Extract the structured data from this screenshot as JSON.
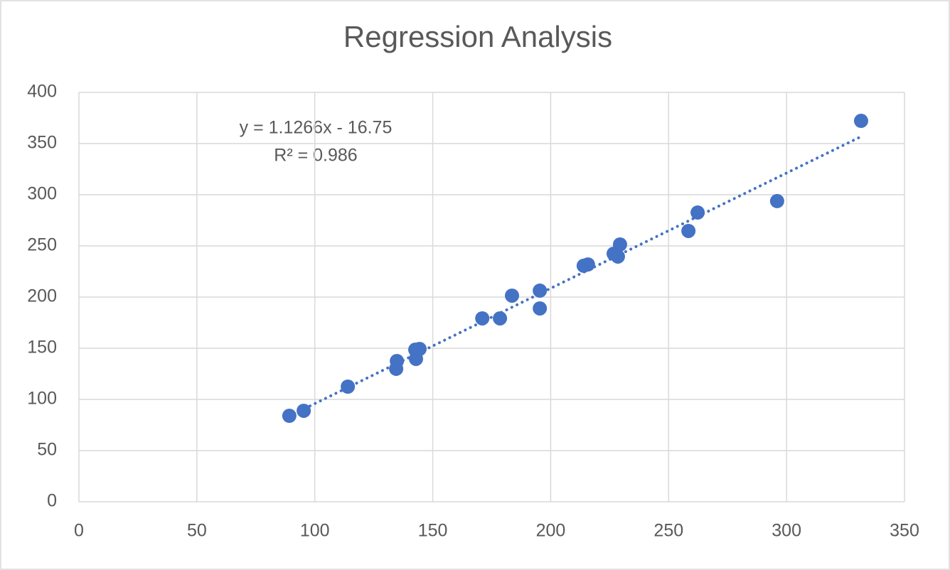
{
  "chart_data": {
    "type": "scatter",
    "title": "Regression Analysis",
    "series": [
      {
        "color": "#4472c4",
        "x": [
          89.2,
          95.3,
          114.0,
          134.5,
          134.8,
          142.9,
          142.6,
          144.4,
          171.0,
          178.5,
          183.6,
          195.4,
          195.4,
          214.0,
          215.8,
          226.7,
          228.5,
          229.4,
          258.4,
          262.3,
          296.0,
          331.6
        ],
        "values": [
          84.0,
          88.9,
          112.5,
          129.9,
          137.5,
          139.6,
          148.6,
          149.3,
          179.2,
          179.2,
          201.4,
          206.3,
          188.9,
          230.6,
          231.9,
          242.4,
          239.6,
          251.4,
          264.6,
          282.6,
          293.8,
          372.2
        ]
      }
    ],
    "trendline": {
      "slope": 1.1266,
      "intercept": -16.75,
      "label": "y = 1.1266x - 16.75",
      "r2": 0.986,
      "r2_label": "R² = 0.986",
      "color": "#4472c4",
      "style": "dotted"
    },
    "xlim": [
      0,
      350
    ],
    "xticks": [
      0,
      50,
      100,
      150,
      200,
      250,
      300,
      350
    ],
    "ylim": [
      0,
      400
    ],
    "yticks": [
      0,
      50,
      100,
      150,
      200,
      250,
      300,
      350,
      400
    ],
    "grid": true
  }
}
